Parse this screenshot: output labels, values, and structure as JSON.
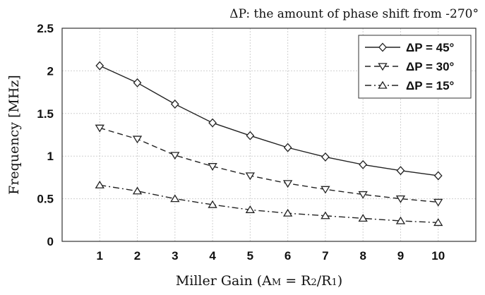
{
  "chart_data": {
    "type": "line",
    "annotation": "ΔP: the amount of phase shift from -270°",
    "xlabel": "Miller Gain (A",
    "xlabel_sub_M": "M",
    "xlabel_mid": " = R",
    "xlabel_sub_2": "2",
    "xlabel_slash": "/R",
    "xlabel_sub_1": "1",
    "xlabel_end": ")",
    "ylabel": "Frequency [MHz]",
    "x": [
      1,
      2,
      3,
      4,
      5,
      6,
      7,
      8,
      9,
      10
    ],
    "xlim": [
      0,
      11
    ],
    "ylim": [
      0,
      2.5
    ],
    "xticks": [
      "1",
      "2",
      "3",
      "4",
      "5",
      "6",
      "7",
      "8",
      "9",
      "10"
    ],
    "yticks": [
      "0",
      "0.5",
      "1",
      "1.5",
      "2",
      "2.5"
    ],
    "ytick_values": [
      0,
      0.5,
      1,
      1.5,
      2,
      2.5
    ],
    "grid": true,
    "legend_position": "top-right",
    "series": [
      {
        "name": "ΔP = 45°",
        "marker": "diamond",
        "line": "solid",
        "values": [
          2.06,
          1.86,
          1.61,
          1.39,
          1.24,
          1.1,
          0.99,
          0.9,
          0.83,
          0.77
        ]
      },
      {
        "name": "ΔP = 30°",
        "marker": "triangle-down",
        "line": "dashed",
        "values": [
          1.33,
          1.2,
          1.01,
          0.88,
          0.77,
          0.68,
          0.61,
          0.55,
          0.5,
          0.46
        ]
      },
      {
        "name": "ΔP = 15°",
        "marker": "triangle-up",
        "line": "dash-dot",
        "values": [
          0.66,
          0.59,
          0.5,
          0.43,
          0.37,
          0.33,
          0.3,
          0.27,
          0.24,
          0.22
        ]
      }
    ]
  }
}
